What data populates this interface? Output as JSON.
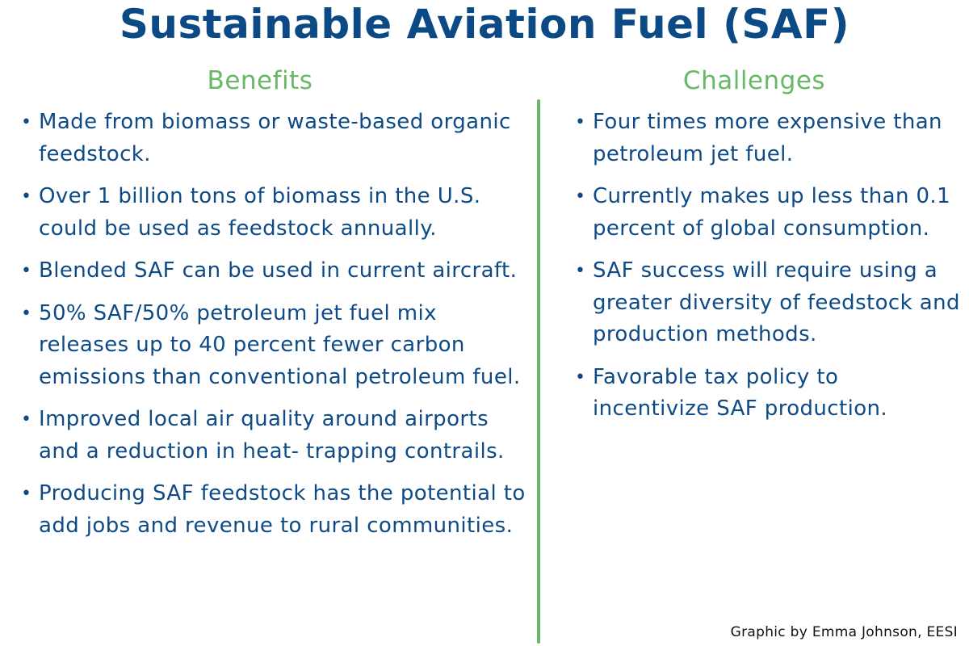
{
  "title": "Sustainable Aviation Fuel (SAF)",
  "benefits": {
    "heading": "Benefits",
    "items": [
      "Made from biomass or waste-based organic feedstock.",
      "Over 1 billion tons of biomass in the U.S. could be used as feedstock annually.",
      "Blended SAF can be used in current aircraft.",
      "50% SAF/50% petroleum jet fuel mix releases up to 40 percent fewer carbon emissions than conventional petroleum fuel.",
      "Improved local air quality around airports and a reduction in heat- trapping contrails.",
      "Producing SAF feedstock has the potential to add jobs and revenue to rural communities."
    ]
  },
  "challenges": {
    "heading": "Challenges",
    "items": [
      "Four times more expensive than petroleum jet fuel.",
      "Currently makes up less than 0.1 percent of global consumption.",
      "SAF success will require using a greater diversity of feedstock and production methods.",
      "Favorable tax policy to incentivize SAF production."
    ]
  },
  "bullet_glyph": "•",
  "credit": "Graphic by Emma Johnson, EESI",
  "colors": {
    "navy": "#0d4a86",
    "green": "#68b966"
  }
}
